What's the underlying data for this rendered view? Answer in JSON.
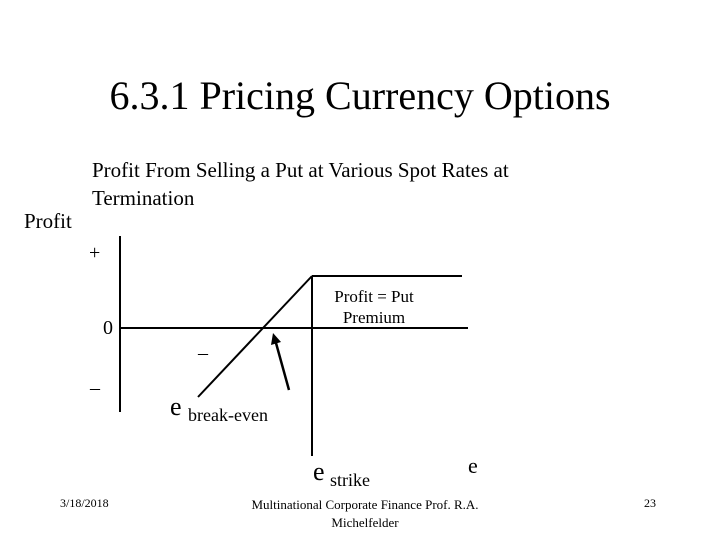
{
  "slide": {
    "title": "6.3.1 Pricing Currency Options",
    "subtitle": "Profit From Selling a Put at Various Spot Rates at Termination",
    "y_label": "Profit",
    "y_plus": "+",
    "y_zero": "0",
    "y_minus": "–",
    "mid_minus": "–",
    "profit_label": "Profit = Put Premium",
    "breakeven_e": "e",
    "breakeven_sub": "break-even",
    "strike_e": "e",
    "strike_sub": "strike",
    "x_label": "e"
  },
  "footer": {
    "date": "3/18/2018",
    "center": "Multinational Corporate Finance Prof. R.A. Michelfelder",
    "page": "23"
  }
}
